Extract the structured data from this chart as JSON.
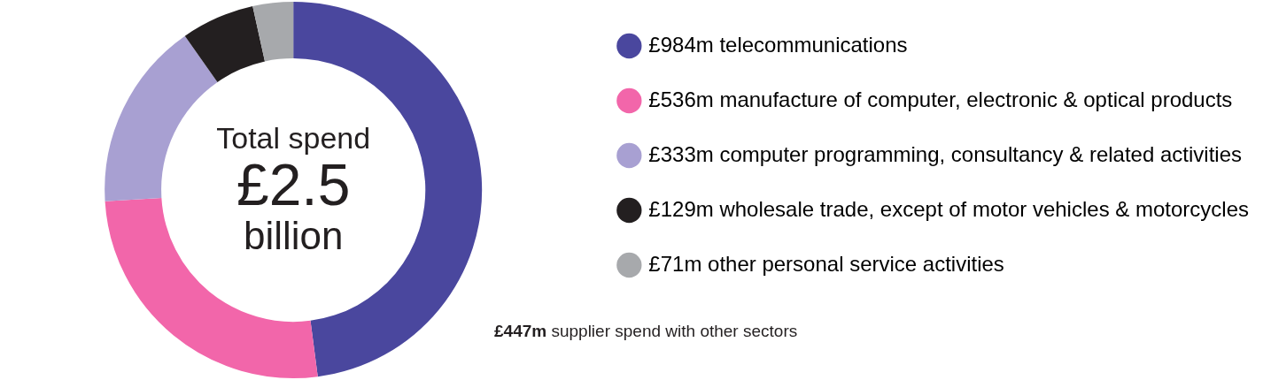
{
  "chart_data": {
    "type": "donut",
    "categories": [
      "telecommunications",
      "manufacture of computer, electronic & optical products",
      "computer programming, consultancy & related activities",
      "wholesale trade, except of motor vehicles & motorcycles",
      "other personal service activities"
    ],
    "values": [
      984,
      536,
      333,
      129,
      71
    ],
    "value_labels": [
      "£984m",
      "£536m",
      "£333m",
      "£129m",
      "£71m"
    ],
    "colors": [
      "#4a479e",
      "#f266aa",
      "#a8a0d2",
      "#231f20",
      "#a7a9ac"
    ],
    "legend": "right",
    "annotations": [
      "Total spend",
      "£2.5",
      "billion",
      "£447m supplier spend with other sectors"
    ]
  }
}
